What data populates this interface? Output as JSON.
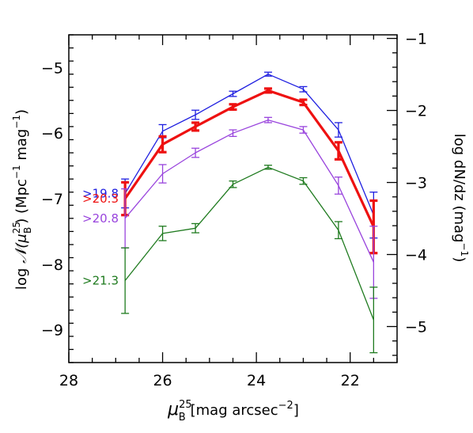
{
  "chart_data": {
    "type": "line",
    "x": [
      26.8,
      26.0,
      25.3,
      24.5,
      23.75,
      23.0,
      22.25,
      21.5
    ],
    "xlim": [
      28,
      21
    ],
    "ylim": [
      -9.5,
      -4.5
    ],
    "y2lim": [
      -5.5,
      -0.95
    ],
    "grid": false,
    "xlabel": "μ",
    "xlabel_sup": "25",
    "xlabel_sub": "B",
    "xlabel_units": "[mag arcsec",
    "xlabel_units_sup": "−2",
    "xlabel_units_end": "]",
    "ylabel_prefix": "log ",
    "ylabel_N": "𝒩",
    "ylabel_paren": "(μ",
    "ylabel_sup": "25",
    "ylabel_sub": "B",
    "ylabel_units": ")  (Mpc",
    "ylabel_units_sup1": "−1",
    "ylabel_units_mid": "  mag",
    "ylabel_units_sup2": "−1",
    "ylabel_units_end": ")",
    "y2label": "log dN/dz (mag",
    "y2label_sup": "−1",
    "y2label_end": ")",
    "x_ticks": [
      {
        "value": 28,
        "label": "28"
      },
      {
        "value": 26,
        "label": "26"
      },
      {
        "value": 24,
        "label": "24"
      },
      {
        "value": 22,
        "label": "22"
      }
    ],
    "y_ticks": [
      {
        "value": -5,
        "label": "−5"
      },
      {
        "value": -6,
        "label": "−6"
      },
      {
        "value": -7,
        "label": "−7"
      },
      {
        "value": -8,
        "label": "−8"
      },
      {
        "value": -9,
        "label": "−9"
      }
    ],
    "y2_ticks": [
      {
        "value": -1,
        "label": "−1"
      },
      {
        "value": -2,
        "label": "−2"
      },
      {
        "value": -3,
        "label": "−3"
      },
      {
        "value": -4,
        "label": "−4"
      },
      {
        "value": -5,
        "label": "−5"
      }
    ],
    "series": [
      {
        "name": ">19.8",
        "color": "#1f1fe0",
        "thick": false,
        "values": [
          -6.92,
          -5.97,
          -5.72,
          -5.4,
          -5.1,
          -5.33,
          -5.95,
          -7.25
        ],
        "err": [
          0.22,
          0.1,
          0.07,
          0.04,
          0.03,
          0.04,
          0.11,
          0.35
        ]
      },
      {
        "name": ">20.3",
        "color": "#ee1111",
        "thick": true,
        "values": [
          -7.0,
          -6.17,
          -5.9,
          -5.6,
          -5.35,
          -5.53,
          -6.27,
          -7.43
        ],
        "err": [
          0.25,
          0.12,
          0.06,
          0.04,
          0.03,
          0.04,
          0.13,
          0.4
        ]
      },
      {
        "name": ">20.8",
        "color": "#9944dd",
        "thick": false,
        "values": [
          -7.3,
          -6.62,
          -6.3,
          -6.0,
          -5.8,
          -5.95,
          -6.8,
          -7.97
        ],
        "err": [
          0.45,
          0.14,
          0.07,
          0.05,
          0.04,
          0.05,
          0.13,
          0.55
        ]
      },
      {
        "name": ">21.3",
        "color": "#1e7a1e",
        "thick": false,
        "values": [
          -8.25,
          -7.53,
          -7.45,
          -6.78,
          -6.52,
          -6.73,
          -7.48,
          -8.85
        ],
        "err": [
          0.5,
          0.11,
          0.07,
          0.05,
          0.03,
          0.05,
          0.13,
          0.5
        ]
      }
    ]
  }
}
